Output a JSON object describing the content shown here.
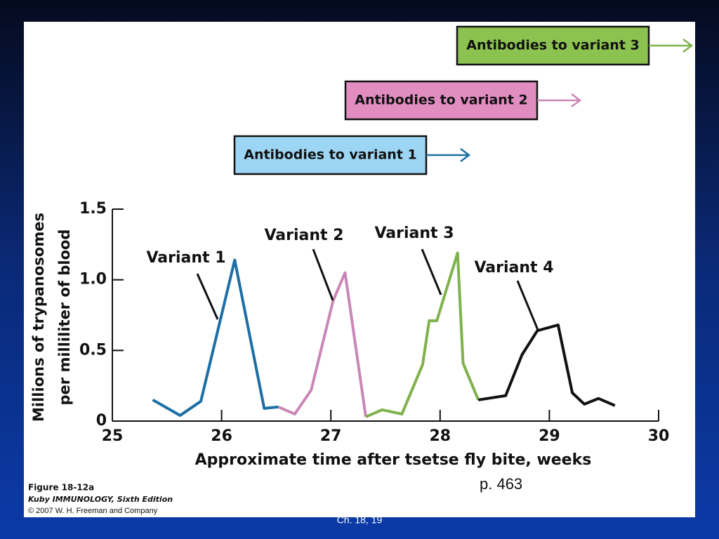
{
  "chart_data": {
    "type": "line",
    "xlabel": "Approximate time after tsetse fly bite, weeks",
    "ylabel": [
      "Millions of trypanosomes",
      "per milliliter of blood"
    ],
    "xlim": [
      25,
      30
    ],
    "ylim": [
      0,
      1.5
    ],
    "xticks": [
      25,
      26,
      27,
      28,
      29,
      30
    ],
    "yticks": [
      0,
      0.5,
      {
        "value": 1,
        "label": "1.0"
      },
      1.5
    ],
    "series": [
      {
        "name": "Variant 1",
        "color": "#1d6fa5",
        "x": [
          25.37,
          25.62,
          25.81,
          26.12,
          26.39,
          26.52
        ],
        "values": [
          0.15,
          0.04,
          0.14,
          1.14,
          0.09,
          0.1
        ]
      },
      {
        "name": "Variant 2",
        "color": "#c987b6",
        "x": [
          26.52,
          26.67,
          26.82,
          27.02,
          27.13,
          27.32
        ],
        "values": [
          0.1,
          0.05,
          0.22,
          0.85,
          1.05,
          0.03
        ]
      },
      {
        "name": "Variant 3",
        "color": "#80b24c",
        "x": [
          27.32,
          27.47,
          27.65,
          27.84,
          27.9,
          27.97,
          28.16,
          28.21,
          28.35
        ],
        "values": [
          0.03,
          0.08,
          0.05,
          0.4,
          0.71,
          0.71,
          1.19,
          0.41,
          0.15
        ]
      },
      {
        "name": "Variant 4",
        "color": "#111111",
        "x": [
          28.35,
          28.6,
          28.75,
          28.89,
          29.08,
          29.21,
          29.32,
          29.45,
          29.6
        ],
        "values": [
          0.15,
          0.18,
          0.47,
          0.64,
          0.68,
          0.2,
          0.12,
          0.16,
          0.11
        ]
      }
    ],
    "annotations": [
      "Antibodies to variant 1",
      "Antibodies to variant 2",
      "Antibodies to variant 3"
    ]
  },
  "caption": {
    "figure": "Figure 18-12a",
    "book": "Kuby IMMUNOLOGY, Sixth Edition",
    "copyright": "© 2007 W. H. Freeman and Company"
  },
  "page_ref": "p. 463",
  "footer": "Ch. 18, 19"
}
